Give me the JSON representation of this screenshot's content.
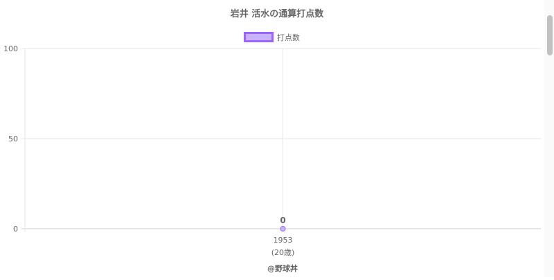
{
  "chart_data": {
    "type": "line",
    "title": "岩井 活水の通算打点数",
    "categories": [
      [
        "1953",
        "(20歳)"
      ]
    ],
    "series": [
      {
        "name": "打点数",
        "values": [
          0
        ]
      }
    ],
    "data_labels": [
      "0"
    ],
    "ylim": [
      0,
      100
    ],
    "yticks": [
      "0",
      "50",
      "100"
    ],
    "grid": true,
    "legend": "top",
    "colors": {
      "line": "#9966ff",
      "fill": "#c9b3ff"
    },
    "credit": "@野球丼"
  }
}
